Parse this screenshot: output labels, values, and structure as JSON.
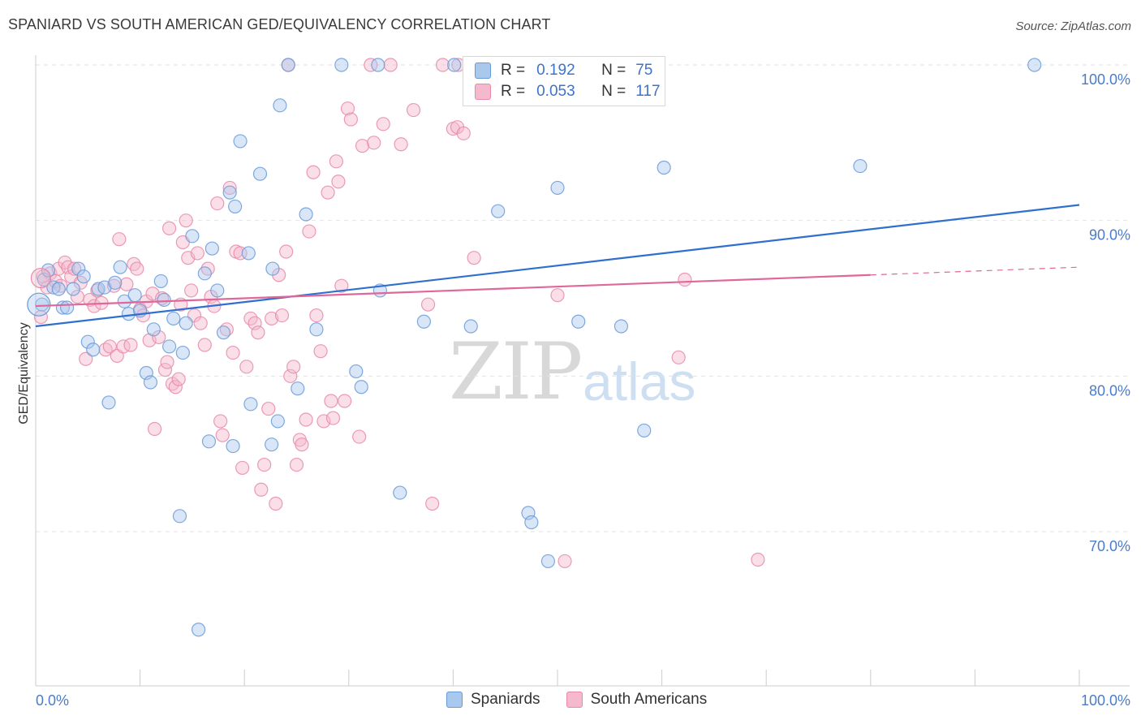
{
  "header": {
    "title": "SPANIARD VS SOUTH AMERICAN GED/EQUIVALENCY CORRELATION CHART",
    "source": "Source: ZipAtlas.com"
  },
  "watermark": {
    "zip": "ZIP",
    "atlas": "atlas"
  },
  "legend": {
    "rows": [
      {
        "r_label": "R =",
        "r_value": "0.192",
        "n_label": "N =",
        "n_value": "75"
      },
      {
        "r_label": "R =",
        "r_value": "0.053",
        "n_label": "N =",
        "n_value": "117"
      }
    ]
  },
  "bottom_legend": {
    "series1": "Spaniards",
    "series2": "South Americans"
  },
  "colors": {
    "blue_fill": "#a9c8ee",
    "blue_stroke": "#6a9ad8",
    "blue_line": "#2f6fce",
    "pink_fill": "#f5b8cc",
    "pink_stroke": "#e88aa9",
    "pink_line": "#e0679a",
    "tick_label": "#4a7cc9",
    "grid": "#e2e2e2"
  },
  "chart_data": {
    "type": "scatter",
    "title": "SPANIARD VS SOUTH AMERICAN GED/EQUIVALENCY CORRELATION CHART",
    "ylabel": "GED/Equivalency",
    "xlabel": "",
    "xlim": [
      0,
      100
    ],
    "ylim": [
      61.5,
      101
    ],
    "x_tick_labels": [
      "0.0%",
      "100.0%"
    ],
    "y_ticks": [
      70,
      80,
      90,
      100
    ],
    "y_tick_labels": [
      "70.0%",
      "80.0%",
      "90.0%",
      "100.0%"
    ],
    "grid": true,
    "legend_position": "top-center",
    "series": [
      {
        "name": "Spaniards",
        "r": 0.192,
        "n": 75,
        "trend": {
          "x": [
            0,
            100
          ],
          "y": [
            83.2,
            91.0
          ]
        },
        "points": [
          [
            0.6,
            84.6
          ],
          [
            0.8,
            86.2
          ],
          [
            1.2,
            86.8
          ],
          [
            1.7,
            85.7
          ],
          [
            2.2,
            85.6
          ],
          [
            2.6,
            84.4
          ],
          [
            3.0,
            84.4
          ],
          [
            3.6,
            85.6
          ],
          [
            4.1,
            86.9
          ],
          [
            4.6,
            86.4
          ],
          [
            5.0,
            82.2
          ],
          [
            5.5,
            81.7
          ],
          [
            6.0,
            85.6
          ],
          [
            6.6,
            85.7
          ],
          [
            7.0,
            78.3
          ],
          [
            7.6,
            86.0
          ],
          [
            8.1,
            87.0
          ],
          [
            8.5,
            84.8
          ],
          [
            8.9,
            84.0
          ],
          [
            9.5,
            85.2
          ],
          [
            10.0,
            84.2
          ],
          [
            10.6,
            80.2
          ],
          [
            11.0,
            79.6
          ],
          [
            11.3,
            83.0
          ],
          [
            12.0,
            86.1
          ],
          [
            12.3,
            84.9
          ],
          [
            12.8,
            81.9
          ],
          [
            13.2,
            83.7
          ],
          [
            13.8,
            71.0
          ],
          [
            14.1,
            81.5
          ],
          [
            14.4,
            83.4
          ],
          [
            15.0,
            89.0
          ],
          [
            15.6,
            63.7
          ],
          [
            16.2,
            86.6
          ],
          [
            16.6,
            75.8
          ],
          [
            16.9,
            88.2
          ],
          [
            17.4,
            85.5
          ],
          [
            18.0,
            82.8
          ],
          [
            18.6,
            91.8
          ],
          [
            18.9,
            75.5
          ],
          [
            19.1,
            90.9
          ],
          [
            19.6,
            95.1
          ],
          [
            20.4,
            87.9
          ],
          [
            20.6,
            78.2
          ],
          [
            21.5,
            93.0
          ],
          [
            22.6,
            75.6
          ],
          [
            22.7,
            86.9
          ],
          [
            23.2,
            77.1
          ],
          [
            23.4,
            97.4
          ],
          [
            24.2,
            100.0
          ],
          [
            25.1,
            79.2
          ],
          [
            25.9,
            90.4
          ],
          [
            26.9,
            83.0
          ],
          [
            29.3,
            100.0
          ],
          [
            30.7,
            80.3
          ],
          [
            31.2,
            79.3
          ],
          [
            32.8,
            100.0
          ],
          [
            33.0,
            85.5
          ],
          [
            34.9,
            72.5
          ],
          [
            37.2,
            83.5
          ],
          [
            40.1,
            100.0
          ],
          [
            41.7,
            83.2
          ],
          [
            43.7,
            99.0
          ],
          [
            44.3,
            90.6
          ],
          [
            47.2,
            71.2
          ],
          [
            47.5,
            70.6
          ],
          [
            49.1,
            68.1
          ],
          [
            49.5,
            100.0
          ],
          [
            50.0,
            92.1
          ],
          [
            52.0,
            83.5
          ],
          [
            56.1,
            83.2
          ],
          [
            58.3,
            76.5
          ],
          [
            60.2,
            93.4
          ],
          [
            79.0,
            93.5
          ],
          [
            95.7,
            100.0
          ]
        ]
      },
      {
        "name": "South Americans",
        "r": 0.053,
        "n": 117,
        "trend": {
          "x": [
            0,
            80
          ],
          "y": [
            84.5,
            86.5
          ]
        },
        "trend_dashed": {
          "x": [
            80,
            100
          ],
          "y": [
            86.5,
            87.0
          ]
        },
        "points": [
          [
            0.5,
            83.8
          ],
          [
            0.7,
            86.4
          ],
          [
            1.1,
            85.7
          ],
          [
            1.4,
            86.6
          ],
          [
            1.9,
            86.1
          ],
          [
            2.2,
            86.9
          ],
          [
            2.4,
            85.8
          ],
          [
            2.8,
            87.3
          ],
          [
            3.1,
            87.0
          ],
          [
            3.4,
            86.4
          ],
          [
            3.7,
            86.9
          ],
          [
            4.0,
            85.1
          ],
          [
            4.3,
            86.0
          ],
          [
            4.8,
            81.1
          ],
          [
            5.2,
            84.9
          ],
          [
            5.6,
            84.5
          ],
          [
            5.9,
            85.5
          ],
          [
            6.3,
            84.7
          ],
          [
            6.7,
            81.7
          ],
          [
            7.1,
            81.9
          ],
          [
            7.5,
            85.8
          ],
          [
            7.8,
            81.3
          ],
          [
            8.0,
            88.8
          ],
          [
            8.4,
            81.9
          ],
          [
            8.7,
            85.9
          ],
          [
            9.1,
            82.0
          ],
          [
            9.4,
            87.2
          ],
          [
            9.7,
            86.9
          ],
          [
            10.0,
            84.3
          ],
          [
            10.3,
            83.9
          ],
          [
            10.6,
            84.8
          ],
          [
            10.9,
            82.3
          ],
          [
            11.2,
            85.3
          ],
          [
            11.4,
            76.6
          ],
          [
            11.8,
            82.5
          ],
          [
            12.1,
            85.0
          ],
          [
            12.4,
            80.4
          ],
          [
            12.6,
            80.9
          ],
          [
            12.8,
            89.5
          ],
          [
            13.1,
            79.5
          ],
          [
            13.4,
            79.3
          ],
          [
            13.7,
            79.8
          ],
          [
            13.9,
            84.6
          ],
          [
            14.1,
            88.6
          ],
          [
            14.4,
            90.0
          ],
          [
            14.6,
            87.6
          ],
          [
            14.9,
            85.5
          ],
          [
            15.2,
            83.9
          ],
          [
            15.5,
            87.9
          ],
          [
            15.8,
            83.4
          ],
          [
            16.2,
            82.0
          ],
          [
            16.5,
            86.9
          ],
          [
            16.8,
            85.1
          ],
          [
            17.1,
            84.5
          ],
          [
            17.4,
            91.1
          ],
          [
            17.7,
            77.1
          ],
          [
            17.9,
            76.2
          ],
          [
            18.3,
            83.0
          ],
          [
            18.6,
            92.1
          ],
          [
            18.9,
            81.5
          ],
          [
            19.2,
            88.0
          ],
          [
            19.6,
            87.9
          ],
          [
            19.8,
            74.1
          ],
          [
            20.2,
            80.6
          ],
          [
            20.6,
            83.7
          ],
          [
            21.0,
            83.4
          ],
          [
            21.3,
            82.8
          ],
          [
            21.6,
            72.7
          ],
          [
            21.9,
            74.3
          ],
          [
            22.3,
            77.9
          ],
          [
            22.6,
            83.7
          ],
          [
            23.0,
            71.8
          ],
          [
            23.3,
            86.5
          ],
          [
            23.6,
            83.9
          ],
          [
            24.0,
            88.0
          ],
          [
            24.2,
            100.0
          ],
          [
            24.4,
            80.0
          ],
          [
            24.7,
            80.6
          ],
          [
            25.0,
            74.3
          ],
          [
            25.3,
            75.9
          ],
          [
            25.5,
            75.6
          ],
          [
            25.9,
            77.2
          ],
          [
            26.2,
            89.3
          ],
          [
            26.6,
            93.1
          ],
          [
            26.9,
            83.9
          ],
          [
            27.3,
            81.6
          ],
          [
            27.6,
            77.1
          ],
          [
            28.0,
            91.8
          ],
          [
            28.3,
            78.4
          ],
          [
            28.5,
            77.3
          ],
          [
            28.8,
            93.8
          ],
          [
            29.0,
            92.5
          ],
          [
            29.3,
            85.8
          ],
          [
            29.6,
            78.4
          ],
          [
            29.9,
            97.2
          ],
          [
            30.2,
            96.5
          ],
          [
            31.0,
            76.1
          ],
          [
            31.3,
            94.8
          ],
          [
            32.1,
            100.0
          ],
          [
            32.4,
            95.0
          ],
          [
            33.3,
            96.2
          ],
          [
            34.0,
            100.0
          ],
          [
            35.0,
            94.9
          ],
          [
            36.2,
            97.1
          ],
          [
            37.6,
            84.6
          ],
          [
            38.0,
            71.8
          ],
          [
            39.0,
            100.0
          ],
          [
            40.0,
            95.9
          ],
          [
            40.4,
            96.0
          ],
          [
            41.0,
            95.6
          ],
          [
            42.0,
            87.6
          ],
          [
            50.0,
            85.2
          ],
          [
            50.7,
            68.1
          ],
          [
            61.6,
            81.2
          ],
          [
            62.2,
            86.2
          ],
          [
            69.2,
            68.2
          ],
          [
            40.5,
            100.0
          ]
        ]
      }
    ]
  }
}
